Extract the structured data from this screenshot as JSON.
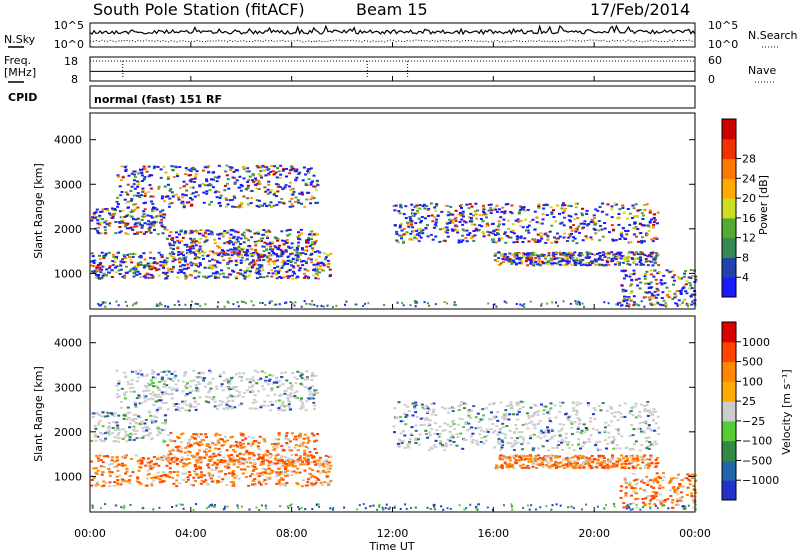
{
  "header": {
    "station": "South Pole Station (fitACF)",
    "beam": "Beam 15",
    "date": "17/Feb/2014"
  },
  "chart_data": [
    {
      "type": "line",
      "panel": "noise",
      "left_label": "N.Sky",
      "right_label": "N.Search",
      "left_ticks": [
        "10^5",
        "10^0"
      ],
      "right_ticks": [
        "10^5",
        "10^0"
      ],
      "series": [
        {
          "name": "N.Sky",
          "style": "solid"
        },
        {
          "name": "N.Search",
          "style": "dotted"
        }
      ]
    },
    {
      "type": "line",
      "panel": "frequency",
      "left_label_1": "Freq.",
      "left_label_2": "[MHz]",
      "right_label": "Nave",
      "left_ticks": [
        "18",
        "8"
      ],
      "right_ticks": [
        "60",
        "0"
      ],
      "ylim": [
        8,
        18
      ],
      "freq_value": 12,
      "nave_value": 50
    },
    {
      "type": "table",
      "panel": "cpid",
      "label": "CPID",
      "text": "normal (fast) 151 RF"
    },
    {
      "type": "heatmap",
      "panel": "power",
      "ylabel": "Slant Range [km]",
      "ylim": [
        200,
        4600
      ],
      "yticks": [
        1000,
        2000,
        3000,
        4000
      ],
      "colorbar": {
        "label": "Power [dB]",
        "ticks": [
          "4",
          "8",
          "12",
          "16",
          "20",
          "24",
          "28"
        ],
        "colors": [
          "#1a1aff",
          "#2244aa",
          "#338855",
          "#55aa33",
          "#ccdd22",
          "#ffaa00",
          "#ff7700",
          "#ee3300",
          "#cc0000"
        ]
      },
      "scatter_regions": [
        {
          "t": [
            0.0,
            3.0
          ],
          "r": [
            1900,
            2500
          ]
        },
        {
          "t": [
            1.0,
            9.0
          ],
          "r": [
            2500,
            3450
          ]
        },
        {
          "t": [
            3.0,
            9.0
          ],
          "r": [
            1400,
            2000
          ]
        },
        {
          "t": [
            0.0,
            9.5
          ],
          "r": [
            900,
            1500
          ]
        },
        {
          "t": [
            12.0,
            22.5
          ],
          "r": [
            1700,
            2600
          ]
        },
        {
          "t": [
            16.0,
            22.5
          ],
          "r": [
            1200,
            1500
          ]
        },
        {
          "t": [
            21.0,
            24.0
          ],
          "r": [
            300,
            1100
          ]
        }
      ]
    },
    {
      "type": "heatmap",
      "panel": "velocity",
      "ylabel": "Slant Range [km]",
      "ylim": [
        200,
        4600
      ],
      "yticks": [
        1000,
        2000,
        3000,
        4000
      ],
      "colorbar": {
        "label": "Velocity [m s⁻¹]",
        "ticks": [
          "1000",
          "500",
          "100",
          "25",
          "−25",
          "−100",
          "−500",
          "−1000"
        ],
        "colors": [
          "#2233cc",
          "#2266aa",
          "#338844",
          "#55cc33",
          "#cccccc",
          "#ffaa00",
          "#ff8800",
          "#ff4400",
          "#dd0000"
        ]
      },
      "scatter_regions": [
        {
          "t": [
            0.0,
            3.0
          ],
          "r": [
            1800,
            2500
          ]
        },
        {
          "t": [
            1.0,
            9.0
          ],
          "r": [
            2500,
            3400
          ]
        },
        {
          "t": [
            3.0,
            9.0
          ],
          "r": [
            1300,
            2000
          ]
        },
        {
          "t": [
            0.0,
            9.5
          ],
          "r": [
            800,
            1500
          ]
        },
        {
          "t": [
            12.0,
            22.5
          ],
          "r": [
            1600,
            2700
          ]
        },
        {
          "t": [
            16.0,
            22.5
          ],
          "r": [
            1200,
            1500
          ]
        },
        {
          "t": [
            21.0,
            24.0
          ],
          "r": [
            300,
            1100
          ]
        }
      ]
    }
  ],
  "xaxis": {
    "label": "Time UT",
    "range": [
      0,
      24
    ],
    "ticks": [
      {
        "t": 0,
        "label": "00:00"
      },
      {
        "t": 4,
        "label": "04:00"
      },
      {
        "t": 8,
        "label": "08:00"
      },
      {
        "t": 12,
        "label": "12:00"
      },
      {
        "t": 16,
        "label": "16:00"
      },
      {
        "t": 20,
        "label": "20:00"
      },
      {
        "t": 24,
        "label": "00:00"
      }
    ]
  }
}
